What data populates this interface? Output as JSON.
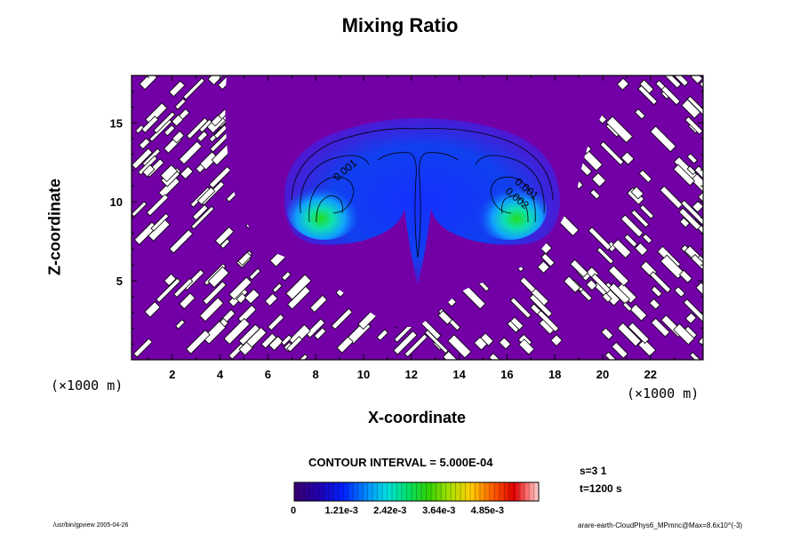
{
  "chart_data": {
    "type": "heatmap",
    "title": "Mixing Ratio",
    "xlabel": "X-coordinate",
    "ylabel": "Z-coordinate",
    "x_unit": "(×1000 m)",
    "y_unit": "(×1000 m)",
    "xlim": [
      0.3,
      24.2
    ],
    "ylim": [
      0,
      18
    ],
    "x_ticks": [
      2,
      4,
      6,
      8,
      10,
      12,
      14,
      16,
      18,
      20,
      22
    ],
    "y_ticks": [
      5,
      10,
      15
    ],
    "contour_labels": [
      {
        "text": "0.001",
        "x": 8.9,
        "y": 11.3
      },
      {
        "text": "0.001",
        "x": 16.3,
        "y": 11.2
      },
      {
        "text": "0.002",
        "x": 15.9,
        "y": 10.6
      }
    ],
    "colorbar": {
      "min": 0,
      "max": 0.0061,
      "tick_labels": [
        "0",
        "1.21e-3",
        "2.42e-3",
        "3.64e-3",
        "4.85e-3"
      ],
      "tick_values": [
        0,
        0.00121,
        0.00242,
        0.00364,
        0.00485
      ]
    },
    "contour_interval": "CONTOUR INTERVAL = 5.000E-04",
    "colors": {
      "background_field": "#7200a6"
    }
  },
  "step_info": {
    "s": "s=3 1",
    "t": "t=1200 s"
  },
  "footer": {
    "left": "/usr/bin/gpview 2005-04-26",
    "right": "arare-earth-CloudPhys6_MPmnc@Max=8.6x10^(-3)"
  }
}
